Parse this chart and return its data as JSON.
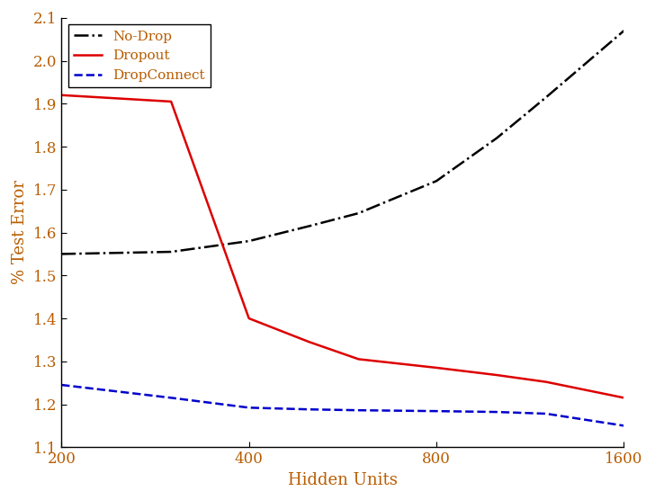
{
  "x": [
    200,
    300,
    400,
    500,
    600,
    800,
    1000,
    1200,
    1600
  ],
  "no_drop": [
    1.55,
    1.555,
    1.58,
    1.615,
    1.645,
    1.72,
    1.82,
    1.915,
    2.07
  ],
  "dropout": [
    1.92,
    1.905,
    1.4,
    1.345,
    1.305,
    1.285,
    1.268,
    1.252,
    1.215
  ],
  "dropconnect": [
    1.245,
    1.215,
    1.192,
    1.188,
    1.186,
    1.184,
    1.182,
    1.178,
    1.15
  ],
  "no_drop_color": "#000000",
  "dropout_color": "#dd0000",
  "dropconnect_color": "#0000cc",
  "xlabel": "Hidden Units",
  "ylabel": "% Test Error",
  "xlim": [
    200,
    1600
  ],
  "ylim": [
    1.1,
    2.1
  ],
  "yticks": [
    1.1,
    1.2,
    1.3,
    1.4,
    1.5,
    1.6,
    1.7,
    1.8,
    1.9,
    2.0,
    2.1
  ],
  "xticks": [
    200,
    400,
    800,
    1600
  ],
  "legend_labels": [
    "No-Drop",
    "Dropout",
    "DropConnect"
  ],
  "background_color": "#ffffff",
  "linewidth": 1.8,
  "tick_label_color": "#b85c00",
  "axis_label_color": "#b85c00",
  "legend_text_color": "#b85c00"
}
